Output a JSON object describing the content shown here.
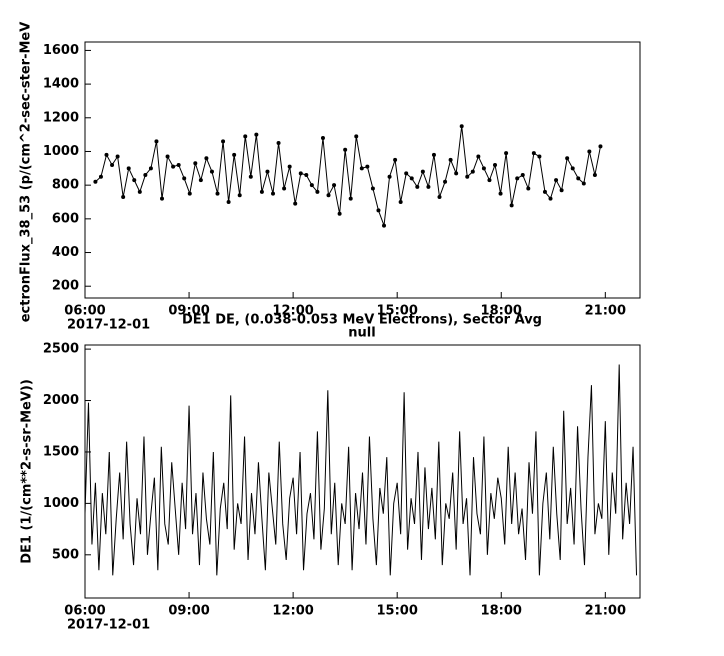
{
  "chart_data": [
    {
      "type": "line",
      "markers": true,
      "ylabel": "ectronFlux_38_53 (p/(cm^2-sec-ster-MeV",
      "date_label": "2017-12-01",
      "xlim": [
        6,
        22
      ],
      "ylim": [
        130,
        1650
      ],
      "xticks": [
        {
          "value": 6,
          "label": "06:00"
        },
        {
          "value": 9,
          "label": "09:00"
        },
        {
          "value": 12,
          "label": "12:00"
        },
        {
          "value": 15,
          "label": "15:00"
        },
        {
          "value": 18,
          "label": "18:00"
        },
        {
          "value": 21,
          "label": "21:00"
        }
      ],
      "yticks": [
        200,
        400,
        600,
        800,
        1000,
        1200,
        1400,
        1600
      ],
      "x": [
        6.3,
        6.46,
        6.62,
        6.78,
        6.94,
        7.1,
        7.26,
        7.42,
        7.58,
        7.74,
        7.9,
        8.06,
        8.22,
        8.38,
        8.54,
        8.7,
        8.86,
        9.02,
        9.18,
        9.34,
        9.5,
        9.66,
        9.82,
        9.98,
        10.14,
        10.3,
        10.46,
        10.62,
        10.78,
        10.94,
        11.1,
        11.26,
        11.42,
        11.58,
        11.74,
        11.9,
        12.06,
        12.22,
        12.38,
        12.54,
        12.7,
        12.86,
        13.02,
        13.18,
        13.34,
        13.5,
        13.66,
        13.82,
        13.98,
        14.14,
        14.3,
        14.46,
        14.62,
        14.78,
        14.94,
        15.1,
        15.26,
        15.42,
        15.58,
        15.74,
        15.9,
        16.06,
        16.22,
        16.38,
        16.54,
        16.7,
        16.86,
        17.02,
        17.18,
        17.34,
        17.5,
        17.66,
        17.82,
        17.98,
        18.14,
        18.3,
        18.46,
        18.62,
        18.78,
        18.94,
        19.1,
        19.26,
        19.42,
        19.58,
        19.74,
        19.9,
        20.06,
        20.22,
        20.38,
        20.54,
        20.7,
        20.86
      ],
      "series": [
        {
          "color": "#000000",
          "values": [
            820,
            850,
            980,
            920,
            970,
            730,
            900,
            830,
            760,
            860,
            900,
            1060,
            720,
            970,
            910,
            920,
            840,
            750,
            930,
            830,
            960,
            880,
            750,
            1060,
            700,
            980,
            740,
            1090,
            850,
            1100,
            760,
            880,
            750,
            1050,
            780,
            910,
            690,
            870,
            860,
            800,
            760,
            1080,
            740,
            800,
            630,
            1010,
            720,
            1090,
            900,
            910,
            780,
            650,
            560,
            850,
            950,
            700,
            870,
            840,
            790,
            880,
            790,
            980,
            730,
            820,
            950,
            870,
            1150,
            850,
            880,
            970,
            900,
            830,
            920,
            750,
            990,
            680,
            840,
            860,
            780,
            990,
            970,
            760,
            720,
            830,
            770,
            960,
            900,
            840,
            810,
            1000,
            860,
            1030
          ]
        }
      ]
    },
    {
      "type": "line",
      "markers": false,
      "title": "DE1 DE, (0.038-0.053 MeV Electrons), Sector Avg",
      "subtitle": "null",
      "ylabel": "DE1 (1/(cm**2-s-sr-MeV))",
      "date_label": "2017-12-01",
      "xlim": [
        6,
        22
      ],
      "ylim": [
        80,
        2540
      ],
      "xticks": [
        {
          "value": 6,
          "label": "06:00"
        },
        {
          "value": 9,
          "label": "09:00"
        },
        {
          "value": 12,
          "label": "12:00"
        },
        {
          "value": 15,
          "label": "15:00"
        },
        {
          "value": 18,
          "label": "18:00"
        },
        {
          "value": 21,
          "label": "21:00"
        }
      ],
      "yticks": [
        500,
        1000,
        1500,
        2000,
        2500
      ],
      "x": [
        6.0,
        6.1,
        6.2,
        6.3,
        6.4,
        6.5,
        6.6,
        6.7,
        6.8,
        6.9,
        7.0,
        7.1,
        7.2,
        7.3,
        7.4,
        7.5,
        7.6,
        7.7,
        7.8,
        7.9,
        8.0,
        8.1,
        8.2,
        8.3,
        8.4,
        8.5,
        8.6,
        8.7,
        8.8,
        8.9,
        9.0,
        9.1,
        9.2,
        9.3,
        9.4,
        9.5,
        9.6,
        9.7,
        9.8,
        9.9,
        10.0,
        10.1,
        10.2,
        10.3,
        10.4,
        10.5,
        10.6,
        10.7,
        10.8,
        10.9,
        11.0,
        11.1,
        11.2,
        11.3,
        11.4,
        11.5,
        11.6,
        11.7,
        11.8,
        11.9,
        12.0,
        12.1,
        12.2,
        12.3,
        12.4,
        12.5,
        12.6,
        12.7,
        12.8,
        12.9,
        13.0,
        13.1,
        13.2,
        13.3,
        13.4,
        13.5,
        13.6,
        13.7,
        13.8,
        13.9,
        14.0,
        14.1,
        14.2,
        14.3,
        14.4,
        14.5,
        14.6,
        14.7,
        14.8,
        14.9,
        15.0,
        15.1,
        15.2,
        15.3,
        15.4,
        15.5,
        15.6,
        15.7,
        15.8,
        15.9,
        16.0,
        16.1,
        16.2,
        16.3,
        16.4,
        16.5,
        16.6,
        16.7,
        16.8,
        16.9,
        17.0,
        17.1,
        17.2,
        17.3,
        17.4,
        17.5,
        17.6,
        17.7,
        17.8,
        17.9,
        18.0,
        18.1,
        18.2,
        18.3,
        18.4,
        18.5,
        18.6,
        18.7,
        18.8,
        18.9,
        19.0,
        19.1,
        19.2,
        19.3,
        19.4,
        19.5,
        19.6,
        19.7,
        19.8,
        19.9,
        20.0,
        20.1,
        20.2,
        20.3,
        20.4,
        20.5,
        20.6,
        20.7,
        20.8,
        20.9,
        21.0,
        21.1,
        21.2,
        21.3,
        21.4,
        21.5,
        21.6,
        21.7,
        21.8,
        21.9
      ],
      "series": [
        {
          "color": "#000000",
          "values": [
            900,
            1980,
            600,
            1200,
            350,
            1100,
            700,
            1500,
            300,
            850,
            1300,
            650,
            1600,
            800,
            400,
            1050,
            700,
            1650,
            500,
            900,
            1250,
            350,
            1550,
            800,
            600,
            1400,
            950,
            500,
            1200,
            750,
            1950,
            700,
            1100,
            400,
            1300,
            850,
            600,
            1500,
            300,
            950,
            1200,
            750,
            2050,
            550,
            1000,
            800,
            1650,
            450,
            1100,
            700,
            1400,
            850,
            350,
            1300,
            950,
            600,
            1600,
            800,
            450,
            1050,
            1250,
            700,
            1500,
            350,
            900,
            1100,
            650,
            1700,
            550,
            950,
            2100,
            700,
            1200,
            400,
            1000,
            800,
            1550,
            350,
            1100,
            750,
            1300,
            600,
            1650,
            850,
            400,
            1150,
            900,
            1450,
            300,
            1000,
            1200,
            700,
            2080,
            550,
            1050,
            800,
            1500,
            450,
            1350,
            750,
            1150,
            650,
            1600,
            400,
            1000,
            850,
            1300,
            550,
            1700,
            800,
            1050,
            300,
            1450,
            900,
            700,
            1650,
            500,
            1100,
            850,
            1250,
            1050,
            600,
            1550,
            800,
            1300,
            700,
            950,
            450,
            1400,
            900,
            1700,
            300,
            1000,
            1300,
            650,
            1550,
            900,
            450,
            1900,
            800,
            1150,
            600,
            1750,
            950,
            400,
            1450,
            2150,
            700,
            1000,
            850,
            1800,
            500,
            1300,
            900,
            2350,
            650,
            1200,
            800,
            1550,
            300
          ]
        }
      ]
    }
  ]
}
